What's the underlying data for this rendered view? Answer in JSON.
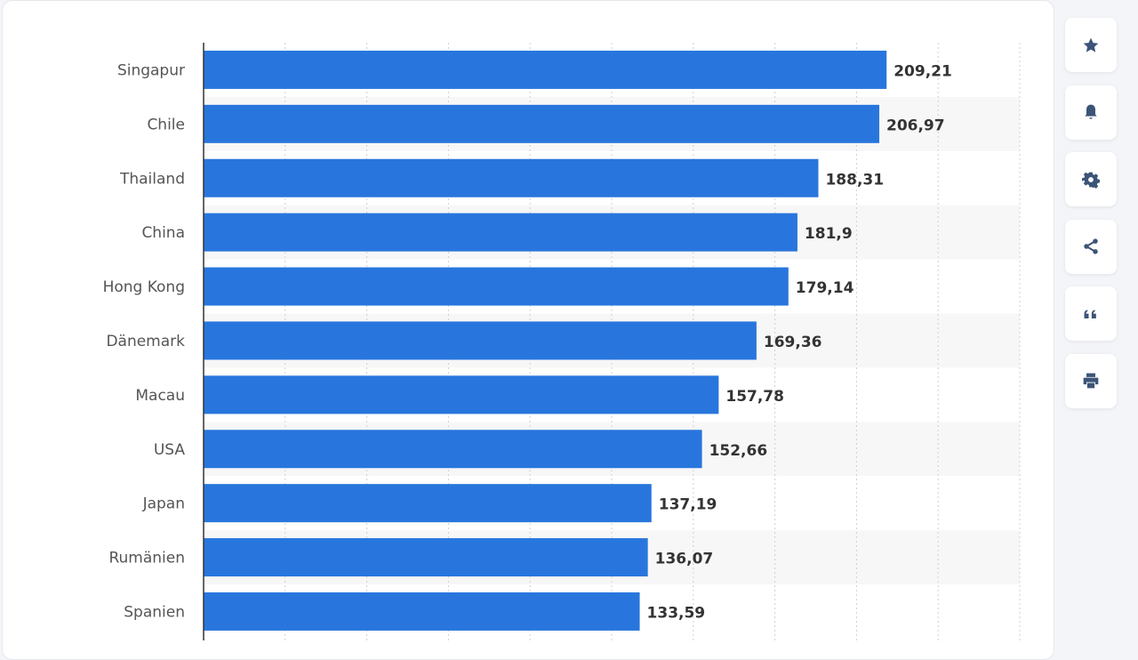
{
  "chart_data": {
    "type": "bar",
    "orientation": "horizontal",
    "categories": [
      "Singapur",
      "Chile",
      "Thailand",
      "China",
      "Hong Kong",
      "Dänemark",
      "Macau",
      "USA",
      "Japan",
      "Rumänien",
      "Spanien"
    ],
    "values": [
      209.21,
      206.97,
      188.31,
      181.9,
      179.14,
      169.36,
      157.78,
      152.66,
      137.19,
      136.07,
      133.59
    ],
    "value_labels": [
      "209,21",
      "206,97",
      "188,31",
      "181,9",
      "179,14",
      "169,36",
      "157,78",
      "152,66",
      "137,19",
      "136,07",
      "133,59"
    ],
    "xlim": [
      0,
      250
    ],
    "grid": true,
    "bar_color": "#2876dd",
    "stripe_color": "#f7f7f7"
  },
  "sidebar": {
    "buttons": [
      {
        "icon": "star-icon"
      },
      {
        "icon": "bell-icon"
      },
      {
        "icon": "gear-icon"
      },
      {
        "icon": "share-icon"
      },
      {
        "icon": "quote-icon"
      },
      {
        "icon": "print-icon"
      }
    ]
  }
}
